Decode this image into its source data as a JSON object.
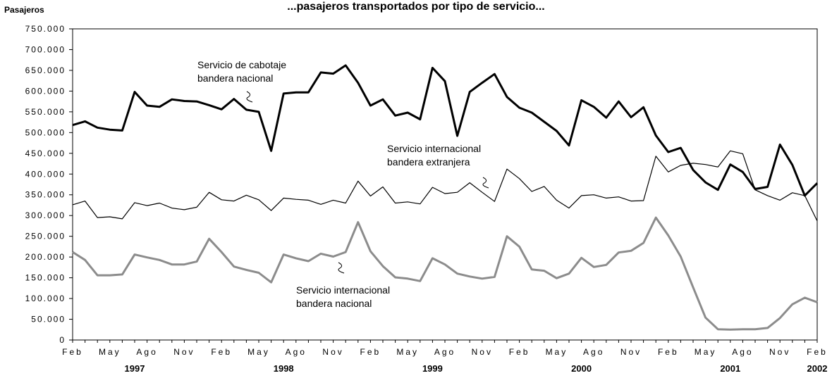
{
  "chart_data": {
    "type": "line",
    "title": "...pasajeros transportados por tipo de servicio...",
    "ylabel": "Pasajeros",
    "ylim": [
      0,
      750000
    ],
    "yticks": [
      0,
      50000,
      100000,
      150000,
      200000,
      250000,
      300000,
      350000,
      400000,
      450000,
      500000,
      550000,
      600000,
      650000,
      700000,
      750000
    ],
    "ytick_labels": [
      "0",
      "50.000",
      "100.000",
      "150.000",
      "200.000",
      "250.000",
      "300.000",
      "350.000",
      "400.000",
      "450.000",
      "500.000",
      "550.000",
      "600.000",
      "650.000",
      "700.000",
      "750.000"
    ],
    "x": [
      "1997-02",
      "1997-03",
      "1997-04",
      "1997-05",
      "1997-06",
      "1997-07",
      "1997-08",
      "1997-09",
      "1997-10",
      "1997-11",
      "1997-12",
      "1998-01",
      "1998-02",
      "1998-03",
      "1998-04",
      "1998-05",
      "1998-06",
      "1998-07",
      "1998-08",
      "1998-09",
      "1998-10",
      "1998-11",
      "1998-12",
      "1999-01",
      "1999-02",
      "1999-03",
      "1999-04",
      "1999-05",
      "1999-06",
      "1999-07",
      "1999-08",
      "1999-09",
      "1999-10",
      "1999-11",
      "1999-12",
      "2000-01",
      "2000-02",
      "2000-03",
      "2000-04",
      "2000-05",
      "2000-06",
      "2000-07",
      "2000-08",
      "2000-09",
      "2000-10",
      "2000-11",
      "2000-12",
      "2001-01",
      "2001-02",
      "2001-03",
      "2001-04",
      "2001-05",
      "2001-06",
      "2001-07",
      "2001-08",
      "2001-09",
      "2001-10",
      "2001-11",
      "2001-12",
      "2002-01",
      "2002-02"
    ],
    "x_tick_labels": [
      "Feb",
      "May",
      "Ago",
      "Nov",
      "Feb",
      "May",
      "Ago",
      "Nov",
      "Feb",
      "May",
      "Ago",
      "Nov",
      "Feb",
      "May",
      "Ago",
      "Nov",
      "Feb",
      "May",
      "Ago",
      "Nov",
      "Feb"
    ],
    "x_tick_positions": [
      0,
      3,
      6,
      9,
      12,
      15,
      18,
      21,
      24,
      27,
      30,
      33,
      36,
      39,
      42,
      45,
      48,
      51,
      54,
      57,
      60
    ],
    "years": [
      {
        "label": "1997",
        "center": 5
      },
      {
        "label": "1998",
        "center": 17
      },
      {
        "label": "1999",
        "center": 29
      },
      {
        "label": "2000",
        "center": 41
      },
      {
        "label": "2001",
        "center": 53
      },
      {
        "label": "2002",
        "center": 60
      }
    ],
    "series": [
      {
        "name": "Servicio de cabotaje bandera nacional",
        "color": "#000000",
        "width": 3,
        "values": [
          518000,
          527000,
          512000,
          507000,
          505000,
          598000,
          565000,
          562000,
          580000,
          576000,
          575000,
          566000,
          556000,
          581000,
          555000,
          550000,
          456000,
          594000,
          597000,
          597000,
          645000,
          642000,
          662000,
          620000,
          565000,
          580000,
          541000,
          548000,
          532000,
          656000,
          624000,
          492000,
          598000,
          620000,
          641000,
          586000,
          560000,
          548000,
          526000,
          504000,
          469000,
          578000,
          562000,
          536000,
          575000,
          537000,
          561000,
          493000,
          453000,
          463000,
          410000,
          380000,
          362000,
          423000,
          405000,
          364000,
          369000,
          471000,
          422000,
          348000,
          378000
        ]
      },
      {
        "name": "Servicio internacional bandera extranjera",
        "color": "#000000",
        "width": 1.2,
        "values": [
          326000,
          335000,
          295000,
          297000,
          292000,
          331000,
          324000,
          330000,
          318000,
          314000,
          320000,
          356000,
          338000,
          335000,
          349000,
          338000,
          312000,
          342000,
          339000,
          337000,
          327000,
          337000,
          330000,
          383000,
          347000,
          369000,
          330000,
          333000,
          328000,
          368000,
          353000,
          356000,
          379000,
          356000,
          334000,
          412000,
          389000,
          358000,
          370000,
          337000,
          318000,
          348000,
          350000,
          342000,
          345000,
          335000,
          336000,
          443000,
          405000,
          421000,
          426000,
          423000,
          417000,
          456000,
          449000,
          362000,
          348000,
          337000,
          355000,
          348000,
          287000
        ]
      },
      {
        "name": "Servicio internacional bandera nacional",
        "color": "#8c8c8c",
        "width": 3,
        "values": [
          212000,
          193000,
          156000,
          156000,
          158000,
          206000,
          199000,
          193000,
          182000,
          182000,
          189000,
          244000,
          212000,
          177000,
          169000,
          162000,
          139000,
          206000,
          197000,
          190000,
          208000,
          201000,
          212000,
          284000,
          214000,
          178000,
          151000,
          148000,
          142000,
          197000,
          182000,
          160000,
          153000,
          148000,
          152000,
          250000,
          225000,
          170000,
          167000,
          149000,
          160000,
          198000,
          176000,
          181000,
          211000,
          215000,
          234000,
          295000,
          252000,
          201000,
          127000,
          54000,
          26000,
          25000,
          26000,
          26000,
          29000,
          53000,
          86000,
          102000,
          91000
        ]
      }
    ],
    "annotations": [
      {
        "lines": [
          "Servicio de cabotaje",
          "bandera nacional"
        ],
        "series": 0
      },
      {
        "lines": [
          "Servicio  internacional",
          "bandera extranjera"
        ],
        "series": 1
      },
      {
        "lines": [
          "Servicio  internacional",
          "bandera nacional"
        ],
        "series": 2
      }
    ],
    "grid": false,
    "legend": "none"
  }
}
